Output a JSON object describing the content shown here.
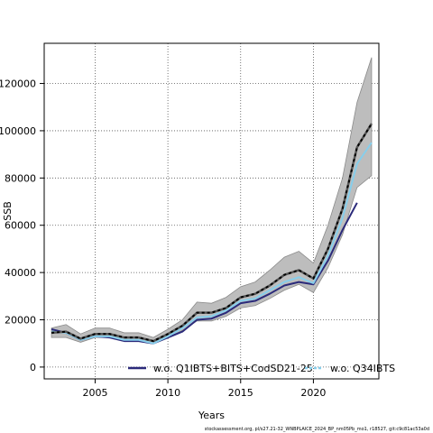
{
  "chart_data": {
    "type": "line",
    "xlabel": "Years",
    "ylabel": "SSB",
    "xlim": [
      2001.5,
      2024.5
    ],
    "ylim": [
      -5000,
      137000
    ],
    "x_ticks": [
      2005,
      2010,
      2015,
      2020
    ],
    "y_ticks": [
      0,
      20000,
      40000,
      60000,
      80000,
      100000,
      120000
    ],
    "grid": true,
    "legend_position": "bottom",
    "x": [
      2002,
      2003,
      2004,
      2005,
      2006,
      2007,
      2008,
      2009,
      2010,
      2011,
      2012,
      2013,
      2014,
      2015,
      2016,
      2017,
      2018,
      2019,
      2020,
      2021,
      2022,
      2023,
      2024
    ],
    "base_run": {
      "values": [
        14500,
        15000,
        12000,
        14000,
        14000,
        12500,
        12500,
        11000,
        14000,
        17500,
        23000,
        23000,
        25000,
        29500,
        31000,
        34500,
        39000,
        41000,
        37500,
        50000,
        67000,
        93000,
        103000
      ],
      "lower": [
        12500,
        12500,
        10500,
        12500,
        12500,
        11000,
        11000,
        10000,
        12500,
        15500,
        19500,
        19500,
        21500,
        25000,
        26000,
        29000,
        32500,
        35000,
        31500,
        42000,
        56000,
        76000,
        81000
      ],
      "upper": [
        16500,
        18000,
        14000,
        16500,
        16500,
        14500,
        14500,
        12500,
        16000,
        20000,
        27500,
        27000,
        29500,
        34000,
        36000,
        41000,
        46500,
        49000,
        44000,
        60000,
        80000,
        112000,
        131000
      ]
    },
    "series": [
      {
        "name": "w.o. Q1IBTS+BITS+CodSD21-25",
        "color": "#2b2a7a",
        "x": [
          2002,
          2003,
          2004,
          2005,
          2006,
          2007,
          2008,
          2009,
          2010,
          2011,
          2012,
          2013,
          2014,
          2015,
          2016,
          2017,
          2018,
          2019,
          2020,
          2021,
          2022,
          2023
        ],
        "values": [
          16000,
          14500,
          11500,
          13000,
          12500,
          11000,
          11000,
          10000,
          12500,
          15000,
          20000,
          20500,
          23000,
          27000,
          28000,
          31000,
          34500,
          36000,
          35000,
          45000,
          58000,
          69500
        ]
      },
      {
        "name": "w.o. Q34IBTS",
        "color": "#87ceeb",
        "x": [
          2002,
          2003,
          2004,
          2005,
          2006,
          2007,
          2008,
          2009,
          2010,
          2011,
          2012,
          2013,
          2014,
          2015,
          2016,
          2017,
          2018,
          2019,
          2020,
          2021,
          2022,
          2023,
          2024
        ],
        "values": [
          15000,
          14500,
          11500,
          13000,
          13000,
          11500,
          11500,
          10000,
          13000,
          16500,
          21000,
          21500,
          24000,
          28000,
          29000,
          32500,
          36000,
          38000,
          35500,
          47000,
          63000,
          86000,
          95000
        ]
      }
    ],
    "legend": [
      {
        "label": "w.o. Q1IBTS+BITS+CodSD21-25",
        "color": "#2b2a7a",
        "style": "solid"
      },
      {
        "label": "w.o. Q34IBTS",
        "color": "#87ceeb",
        "style": "dashed"
      }
    ],
    "footer": "stockassessment.org, pl/s27.21-32_WNBPLAICE_2024_BP_nm05Pb_mo1, r18527, git:c9c81ac53a0d"
  }
}
